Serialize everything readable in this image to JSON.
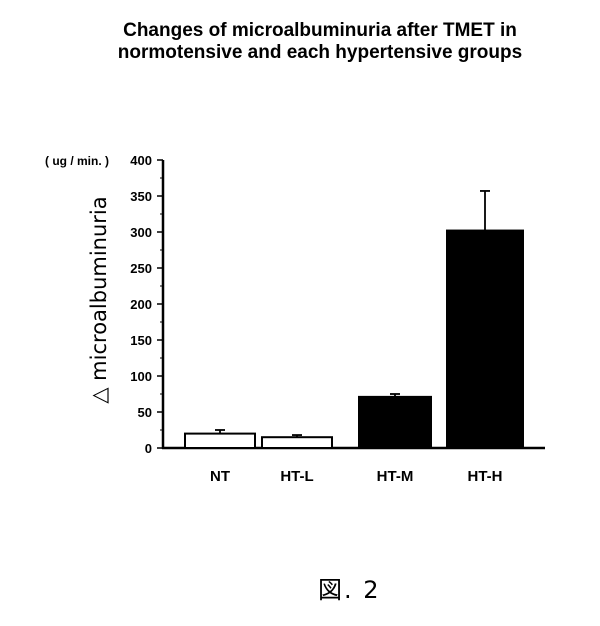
{
  "title_lines": [
    "Changes of microalbuminuria after TMET in",
    "normotensive and each hypertensive groups"
  ],
  "figure_label": "図. 2",
  "chart_data": {
    "type": "bar",
    "categories": [
      "NT",
      "HT-L",
      "HT-M",
      "HT-H"
    ],
    "values": [
      20,
      15,
      71,
      302
    ],
    "errors": [
      5,
      3,
      4,
      55
    ],
    "bar_fills": [
      "#ffffff",
      "#ffffff",
      "#000000",
      "#000000"
    ],
    "ylabel": "△ microalbuminuria",
    "yunit": "( ug / min. )",
    "ylim": [
      0,
      400
    ],
    "yticks": [
      0,
      50,
      100,
      150,
      200,
      250,
      300,
      350,
      400
    ],
    "grid": false
  }
}
